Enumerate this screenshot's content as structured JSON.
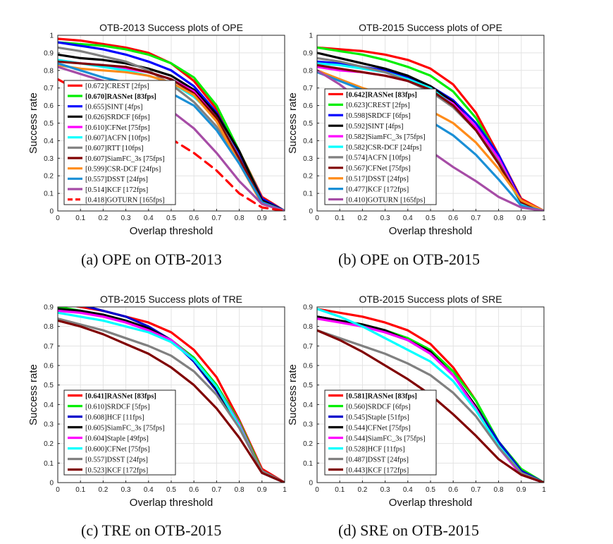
{
  "chart_data": [
    {
      "type": "line",
      "title": "OTB-2013  Success plots of OPE",
      "caption": "(a)  OPE on OTB-2013",
      "xlabel": "Overlap threshold",
      "ylabel": "Success rate",
      "xlim": [
        0,
        1
      ],
      "ylim": [
        0,
        1
      ],
      "xticks": [
        "0",
        "0.1",
        "0.2",
        "0.3",
        "0.4",
        "0.5",
        "0.6",
        "0.7",
        "0.8",
        "0.9",
        "1"
      ],
      "yticks": [
        "0",
        "0.1",
        "0.2",
        "0.3",
        "0.4",
        "0.5",
        "0.6",
        "0.7",
        "0.8",
        "0.9",
        "1"
      ],
      "grid": true,
      "legend_position": "left",
      "x": [
        0,
        0.1,
        0.2,
        0.3,
        0.4,
        0.5,
        0.6,
        0.7,
        0.8,
        0.9,
        1
      ],
      "series": [
        {
          "label": "[0.672]CREST [2fps]",
          "bold": false,
          "dashed": false,
          "color": "#ff0000",
          "values": [
            0.98,
            0.97,
            0.95,
            0.93,
            0.9,
            0.84,
            0.74,
            0.58,
            0.34,
            0.08,
            0
          ]
        },
        {
          "label": "[0.670]RASNet [83fps]",
          "bold": true,
          "dashed": false,
          "color": "#00ee00",
          "values": [
            0.96,
            0.95,
            0.94,
            0.92,
            0.89,
            0.84,
            0.76,
            0.6,
            0.34,
            0.07,
            0
          ]
        },
        {
          "label": "[0.655]SINT [4fps]",
          "bold": false,
          "dashed": false,
          "color": "#0000ff",
          "values": [
            0.96,
            0.94,
            0.92,
            0.89,
            0.85,
            0.8,
            0.71,
            0.56,
            0.33,
            0.07,
            0
          ]
        },
        {
          "label": "[0.626]SRDCF [6fps]",
          "bold": false,
          "dashed": false,
          "color": "#000000",
          "values": [
            0.89,
            0.87,
            0.86,
            0.84,
            0.81,
            0.77,
            0.69,
            0.55,
            0.34,
            0.06,
            0
          ]
        },
        {
          "label": "[0.610]CFNet [75fps]",
          "bold": false,
          "dashed": false,
          "color": "#ff00ff",
          "values": [
            0.86,
            0.84,
            0.83,
            0.81,
            0.79,
            0.75,
            0.68,
            0.53,
            0.3,
            0.05,
            0
          ]
        },
        {
          "label": "[0.607]ACFN [10fps]",
          "bold": false,
          "dashed": false,
          "color": "#00ffff",
          "values": [
            0.86,
            0.84,
            0.82,
            0.8,
            0.77,
            0.73,
            0.65,
            0.53,
            0.3,
            0.05,
            0
          ]
        },
        {
          "label": "[0.607]RTT [10fps]",
          "bold": false,
          "dashed": false,
          "color": "#808080",
          "values": [
            0.93,
            0.91,
            0.88,
            0.85,
            0.8,
            0.72,
            0.62,
            0.48,
            0.28,
            0.05,
            0
          ]
        },
        {
          "label": "[0.607]SiamFC_3s [75fps]",
          "bold": false,
          "dashed": false,
          "color": "#800000",
          "values": [
            0.85,
            0.84,
            0.83,
            0.82,
            0.79,
            0.75,
            0.67,
            0.53,
            0.3,
            0.05,
            0
          ]
        },
        {
          "label": "[0.599]CSR-DCF [24fps]",
          "bold": false,
          "dashed": false,
          "color": "#ff8c1a",
          "values": [
            0.83,
            0.81,
            0.8,
            0.79,
            0.77,
            0.73,
            0.66,
            0.51,
            0.27,
            0.04,
            0
          ]
        },
        {
          "label": "[0.557]DSST [24fps]",
          "bold": false,
          "dashed": false,
          "color": "#1a8fd6",
          "values": [
            0.84,
            0.8,
            0.76,
            0.73,
            0.7,
            0.67,
            0.6,
            0.46,
            0.27,
            0.05,
            0
          ]
        },
        {
          "label": "[0.514]KCF [172fps]",
          "bold": false,
          "dashed": false,
          "color": "#a64ca6",
          "values": [
            0.82,
            0.78,
            0.74,
            0.7,
            0.65,
            0.57,
            0.47,
            0.33,
            0.17,
            0.04,
            0
          ]
        },
        {
          "label": "[0.418]GOTURN [165fps]",
          "bold": false,
          "dashed": true,
          "color": "#ff0000",
          "values": [
            0.75,
            0.68,
            0.61,
            0.55,
            0.48,
            0.41,
            0.33,
            0.23,
            0.1,
            0.02,
            0
          ]
        }
      ]
    },
    {
      "type": "line",
      "title": "OTB-2015  Success plots of OPE",
      "caption": "(b)  OPE on OTB-2015",
      "xlabel": "Overlap threshold",
      "ylabel": "Success rate",
      "xlim": [
        0,
        1
      ],
      "ylim": [
        0,
        1
      ],
      "xticks": [
        "0",
        "0.1",
        "0.2",
        "0.3",
        "0.4",
        "0.5",
        "0.6",
        "0.7",
        "0.8",
        "0.9",
        "1"
      ],
      "yticks": [
        "0",
        "0.1",
        "0.2",
        "0.3",
        "0.4",
        "0.5",
        "0.6",
        "0.7",
        "0.8",
        "0.9",
        "1"
      ],
      "grid": true,
      "legend_position": "left",
      "x": [
        0,
        0.1,
        0.2,
        0.3,
        0.4,
        0.5,
        0.6,
        0.7,
        0.8,
        0.9,
        1
      ],
      "series": [
        {
          "label": "[0.642]RASNet [83fps]",
          "bold": true,
          "dashed": false,
          "color": "#ff0000",
          "values": [
            0.93,
            0.92,
            0.91,
            0.89,
            0.86,
            0.81,
            0.72,
            0.56,
            0.32,
            0.07,
            0
          ]
        },
        {
          "label": "[0.623]CREST [2fps]",
          "bold": false,
          "dashed": false,
          "color": "#00ee00",
          "values": [
            0.93,
            0.91,
            0.89,
            0.86,
            0.82,
            0.77,
            0.68,
            0.53,
            0.31,
            0.06,
            0
          ]
        },
        {
          "label": "[0.598]SRDCF [6fps]",
          "bold": false,
          "dashed": false,
          "color": "#0000ff",
          "values": [
            0.85,
            0.84,
            0.82,
            0.8,
            0.76,
            0.71,
            0.63,
            0.5,
            0.32,
            0.06,
            0
          ]
        },
        {
          "label": "[0.592]SINT [4fps]",
          "bold": false,
          "dashed": false,
          "color": "#000000",
          "values": [
            0.9,
            0.87,
            0.84,
            0.81,
            0.77,
            0.71,
            0.62,
            0.47,
            0.28,
            0.05,
            0
          ]
        },
        {
          "label": "[0.582]SiamFC_3s [75fps]",
          "bold": false,
          "dashed": false,
          "color": "#ff00ff",
          "values": [
            0.82,
            0.8,
            0.79,
            0.77,
            0.74,
            0.69,
            0.61,
            0.48,
            0.3,
            0.05,
            0
          ]
        },
        {
          "label": "[0.582]CSR-DCF [24fps]",
          "bold": false,
          "dashed": false,
          "color": "#00ffff",
          "values": [
            0.84,
            0.83,
            0.81,
            0.79,
            0.75,
            0.7,
            0.6,
            0.46,
            0.27,
            0.04,
            0
          ]
        },
        {
          "label": "[0.574]ACFN [10fps]",
          "bold": false,
          "dashed": false,
          "color": "#808080",
          "values": [
            0.87,
            0.85,
            0.82,
            0.79,
            0.74,
            0.68,
            0.59,
            0.46,
            0.28,
            0.05,
            0
          ]
        },
        {
          "label": "[0.567]CFNet [75fps]",
          "bold": false,
          "dashed": false,
          "color": "#800000",
          "values": [
            0.83,
            0.81,
            0.79,
            0.77,
            0.74,
            0.69,
            0.6,
            0.46,
            0.27,
            0.05,
            0
          ]
        },
        {
          "label": "[0.517]DSST [24fps]",
          "bold": false,
          "dashed": false,
          "color": "#ff8c1a",
          "values": [
            0.8,
            0.75,
            0.7,
            0.66,
            0.62,
            0.57,
            0.5,
            0.39,
            0.24,
            0.06,
            0
          ]
        },
        {
          "label": "[0.477]KCF [172fps]",
          "bold": false,
          "dashed": false,
          "color": "#1a8fd6",
          "values": [
            0.79,
            0.74,
            0.69,
            0.64,
            0.58,
            0.51,
            0.43,
            0.32,
            0.18,
            0.03,
            0
          ]
        },
        {
          "label": "[0.410]GOTURN [165fps]",
          "bold": false,
          "dashed": false,
          "color": "#a64ca6",
          "values": [
            0.8,
            0.72,
            0.62,
            0.52,
            0.43,
            0.34,
            0.25,
            0.17,
            0.08,
            0.02,
            0
          ]
        }
      ]
    },
    {
      "type": "line",
      "title": "OTB-2015  Success plots of TRE",
      "caption": "(c)  TRE on OTB-2015",
      "xlabel": "Overlap threshold",
      "ylabel": "Success rate",
      "xlim": [
        0,
        1
      ],
      "ylim": [
        0,
        0.9
      ],
      "xticks": [
        "0",
        "0.1",
        "0.2",
        "0.3",
        "0.4",
        "0.5",
        "0.6",
        "0.7",
        "0.8",
        "0.9",
        "1"
      ],
      "yticks": [
        "0",
        "0.1",
        "0.2",
        "0.3",
        "0.4",
        "0.5",
        "0.6",
        "0.7",
        "0.8",
        "0.9"
      ],
      "grid": true,
      "legend_position": "bottom-left",
      "x": [
        0,
        0.1,
        0.2,
        0.3,
        0.4,
        0.5,
        0.6,
        0.7,
        0.8,
        0.9,
        1
      ],
      "series": [
        {
          "label": "[0.641]RASNet [83fps]",
          "bold": true,
          "dashed": false,
          "color": "#ff0000",
          "values": [
            0.92,
            0.9,
            0.88,
            0.85,
            0.82,
            0.77,
            0.68,
            0.54,
            0.32,
            0.07,
            0
          ]
        },
        {
          "label": "[0.610]SRDCF [5fps]",
          "bold": false,
          "dashed": false,
          "color": "#00ee00",
          "values": [
            0.9,
            0.88,
            0.86,
            0.83,
            0.79,
            0.73,
            0.64,
            0.5,
            0.31,
            0.06,
            0
          ]
        },
        {
          "label": "[0.608]HCF [11fps]",
          "bold": false,
          "dashed": false,
          "color": "#0000cc",
          "values": [
            0.93,
            0.91,
            0.88,
            0.85,
            0.8,
            0.73,
            0.62,
            0.47,
            0.28,
            0.06,
            0
          ]
        },
        {
          "label": "[0.605]SiamFC_3s [75fps]",
          "bold": false,
          "dashed": false,
          "color": "#000000",
          "values": [
            0.89,
            0.88,
            0.86,
            0.83,
            0.79,
            0.73,
            0.63,
            0.48,
            0.29,
            0.05,
            0
          ]
        },
        {
          "label": "[0.604]Staple [49fps]",
          "bold": false,
          "dashed": false,
          "color": "#ff00ff",
          "values": [
            0.88,
            0.87,
            0.85,
            0.82,
            0.78,
            0.73,
            0.63,
            0.49,
            0.3,
            0.05,
            0
          ]
        },
        {
          "label": "[0.600]CFNet [75fps]",
          "bold": false,
          "dashed": false,
          "color": "#00ffff",
          "values": [
            0.87,
            0.85,
            0.83,
            0.8,
            0.77,
            0.72,
            0.63,
            0.49,
            0.29,
            0.05,
            0
          ]
        },
        {
          "label": "[0.557]DSST [24fps]",
          "bold": false,
          "dashed": false,
          "color": "#808080",
          "values": [
            0.84,
            0.81,
            0.78,
            0.74,
            0.7,
            0.65,
            0.57,
            0.45,
            0.28,
            0.06,
            0
          ]
        },
        {
          "label": "[0.523]KCF [172fps]",
          "bold": false,
          "dashed": false,
          "color": "#800000",
          "values": [
            0.83,
            0.8,
            0.76,
            0.71,
            0.66,
            0.59,
            0.5,
            0.38,
            0.23,
            0.05,
            0
          ]
        }
      ]
    },
    {
      "type": "line",
      "title": "OTB-2015  Success plots of SRE",
      "caption": "(d)  SRE on OTB-2015",
      "xlabel": "Overlap threshold",
      "ylabel": "Success rate",
      "xlim": [
        0,
        1
      ],
      "ylim": [
        0,
        0.9
      ],
      "xticks": [
        "0",
        "0.1",
        "0.2",
        "0.3",
        "0.4",
        "0.5",
        "0.6",
        "0.7",
        "0.8",
        "0.9",
        "1"
      ],
      "yticks": [
        "0",
        "0.1",
        "0.2",
        "0.3",
        "0.4",
        "0.5",
        "0.6",
        "0.7",
        "0.8",
        "0.9"
      ],
      "grid": true,
      "legend_position": "left",
      "x": [
        0,
        0.1,
        0.2,
        0.3,
        0.4,
        0.5,
        0.6,
        0.7,
        0.8,
        0.9,
        1
      ],
      "series": [
        {
          "label": "[0.581]RASNet [83fps]",
          "bold": true,
          "dashed": false,
          "color": "#ff0000",
          "values": [
            0.89,
            0.87,
            0.85,
            0.82,
            0.78,
            0.71,
            0.59,
            0.42,
            0.2,
            0.05,
            0
          ]
        },
        {
          "label": "[0.560]SRDCF [6fps]",
          "bold": false,
          "dashed": false,
          "color": "#00ee00",
          "values": [
            0.85,
            0.83,
            0.81,
            0.78,
            0.74,
            0.68,
            0.57,
            0.42,
            0.21,
            0.07,
            0
          ]
        },
        {
          "label": "[0.545]Staple [51fps]",
          "bold": false,
          "dashed": false,
          "color": "#0000cc",
          "values": [
            0.85,
            0.83,
            0.8,
            0.77,
            0.73,
            0.66,
            0.55,
            0.39,
            0.21,
            0.06,
            0
          ]
        },
        {
          "label": "[0.544]CFNet [75fps]",
          "bold": false,
          "dashed": false,
          "color": "#000000",
          "values": [
            0.85,
            0.83,
            0.81,
            0.78,
            0.73,
            0.67,
            0.55,
            0.39,
            0.18,
            0.04,
            0
          ]
        },
        {
          "label": "[0.544]SiamFC_3s [75fps]",
          "bold": false,
          "dashed": false,
          "color": "#ff00ff",
          "values": [
            0.84,
            0.82,
            0.8,
            0.77,
            0.73,
            0.66,
            0.55,
            0.38,
            0.18,
            0.04,
            0
          ]
        },
        {
          "label": "[0.528]HCF [11fps]",
          "bold": false,
          "dashed": false,
          "color": "#00ffff",
          "values": [
            0.89,
            0.85,
            0.8,
            0.74,
            0.68,
            0.62,
            0.52,
            0.37,
            0.19,
            0.05,
            0
          ]
        },
        {
          "label": "[0.487]DSST [24fps]",
          "bold": false,
          "dashed": false,
          "color": "#808080",
          "values": [
            0.78,
            0.74,
            0.7,
            0.66,
            0.61,
            0.55,
            0.46,
            0.34,
            0.18,
            0.05,
            0
          ]
        },
        {
          "label": "[0.443]KCF [172fps]",
          "bold": false,
          "dashed": false,
          "color": "#800000",
          "values": [
            0.78,
            0.73,
            0.67,
            0.6,
            0.53,
            0.45,
            0.35,
            0.24,
            0.12,
            0.04,
            0
          ]
        }
      ]
    }
  ]
}
